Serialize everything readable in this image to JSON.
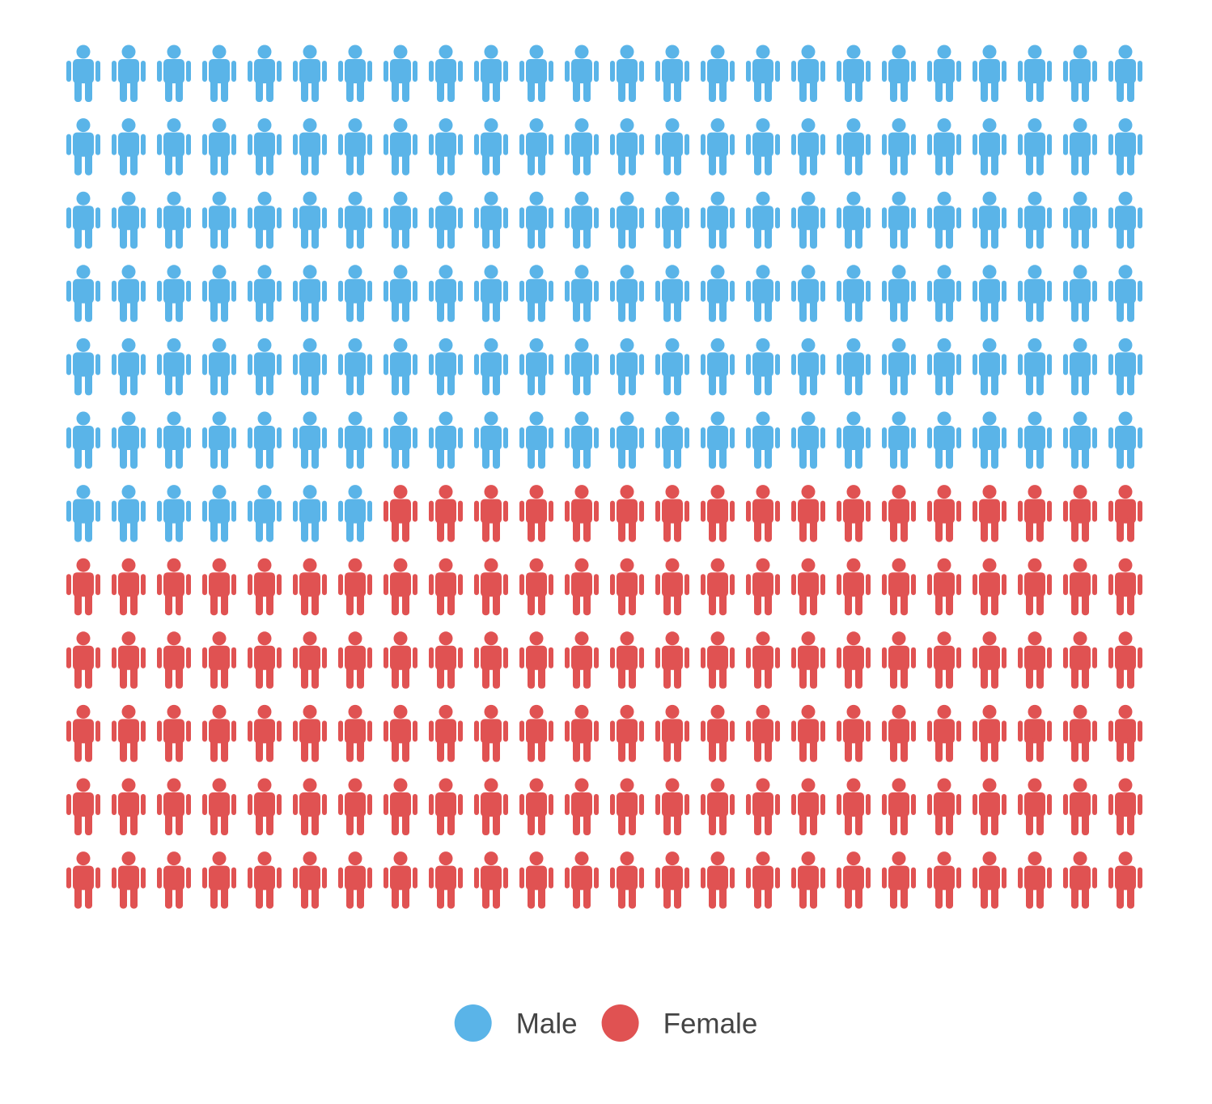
{
  "chart_data": {
    "type": "pictogram",
    "series": [
      {
        "name": "Male",
        "color": "#5ab4e8",
        "values": [
          151
        ]
      },
      {
        "name": "Female",
        "color": "#e05252",
        "values": [
          137
        ]
      }
    ]
  }
}
